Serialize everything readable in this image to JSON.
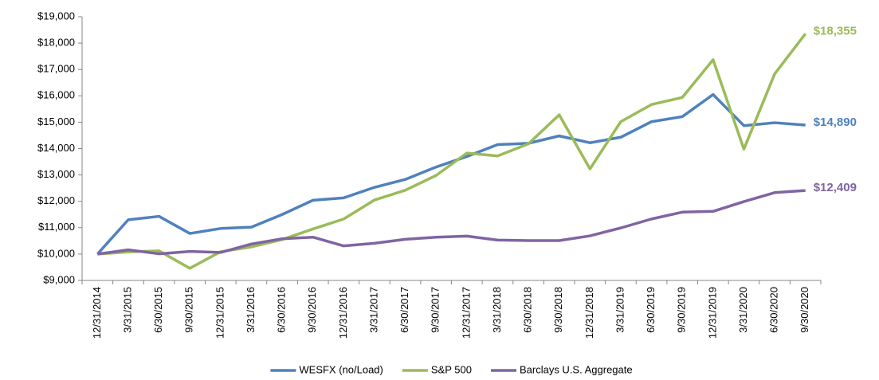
{
  "chart_data": {
    "type": "line",
    "categories": [
      "12/31/2014",
      "3/31/2015",
      "6/30/2015",
      "9/30/2015",
      "12/31/2015",
      "3/31/2016",
      "6/30/2016",
      "9/30/2016",
      "12/31/2016",
      "3/31/2017",
      "6/30/2017",
      "9/30/2017",
      "12/31/2017",
      "3/31/2018",
      "6/30/2018",
      "9/30/2018",
      "12/31/2018",
      "3/31/2019",
      "6/30/2019",
      "9/30/2019",
      "12/31/2019",
      "3/31/2020",
      "6/30/2020",
      "9/30/2020"
    ],
    "series": [
      {
        "name": "WESFX (no/Load)",
        "color": "#4f81bd",
        "values": [
          10000,
          11300,
          11430,
          10780,
          10970,
          11020,
          11500,
          12040,
          12130,
          12530,
          12830,
          13300,
          13700,
          14150,
          14200,
          14480,
          14220,
          14430,
          15020,
          15210,
          16050,
          14870,
          14980,
          14890
        ],
        "value_labels": [
          null,
          null,
          null,
          null,
          null,
          null,
          null,
          null,
          null,
          null,
          null,
          null,
          null,
          null,
          null,
          null,
          null,
          null,
          null,
          null,
          null,
          null,
          null,
          "$14,890"
        ]
      },
      {
        "name": "S&P 500",
        "color": "#9bbb59",
        "values": [
          10000,
          10080,
          10120,
          9460,
          10090,
          10270,
          10550,
          10950,
          11330,
          12050,
          12420,
          12980,
          13830,
          13720,
          14180,
          15280,
          13230,
          15020,
          15670,
          15940,
          17370,
          13980,
          16830,
          18355
        ],
        "value_labels": [
          null,
          null,
          null,
          null,
          null,
          null,
          null,
          null,
          null,
          null,
          null,
          null,
          null,
          null,
          null,
          null,
          null,
          null,
          null,
          null,
          null,
          null,
          null,
          "$18,355"
        ]
      },
      {
        "name": "Barclays U.S. Aggregate",
        "color": "#8064a2",
        "values": [
          10000,
          10160,
          10010,
          10100,
          10060,
          10380,
          10580,
          10640,
          10310,
          10410,
          10560,
          10640,
          10680,
          10530,
          10510,
          10510,
          10690,
          10990,
          11330,
          11590,
          11620,
          11990,
          12330,
          12409
        ],
        "value_labels": [
          null,
          null,
          null,
          null,
          null,
          null,
          null,
          null,
          null,
          null,
          null,
          null,
          null,
          null,
          null,
          null,
          null,
          null,
          null,
          null,
          null,
          null,
          null,
          "$12,409"
        ]
      }
    ],
    "ylim": [
      9000,
      19000
    ],
    "yticks": [
      {
        "value": 9000,
        "label": "$9,000"
      },
      {
        "value": 10000,
        "label": "$10,000"
      },
      {
        "value": 11000,
        "label": "$11,000"
      },
      {
        "value": 12000,
        "label": "$12,000"
      },
      {
        "value": 13000,
        "label": "$13,000"
      },
      {
        "value": 14000,
        "label": "$14,000"
      },
      {
        "value": 15000,
        "label": "$15,000"
      },
      {
        "value": 16000,
        "label": "$16,000"
      },
      {
        "value": 17000,
        "label": "$17,000"
      },
      {
        "value": 18000,
        "label": "$18,000"
      },
      {
        "value": 19000,
        "label": "$19,000"
      }
    ],
    "grid": false,
    "legend": "bottom"
  }
}
